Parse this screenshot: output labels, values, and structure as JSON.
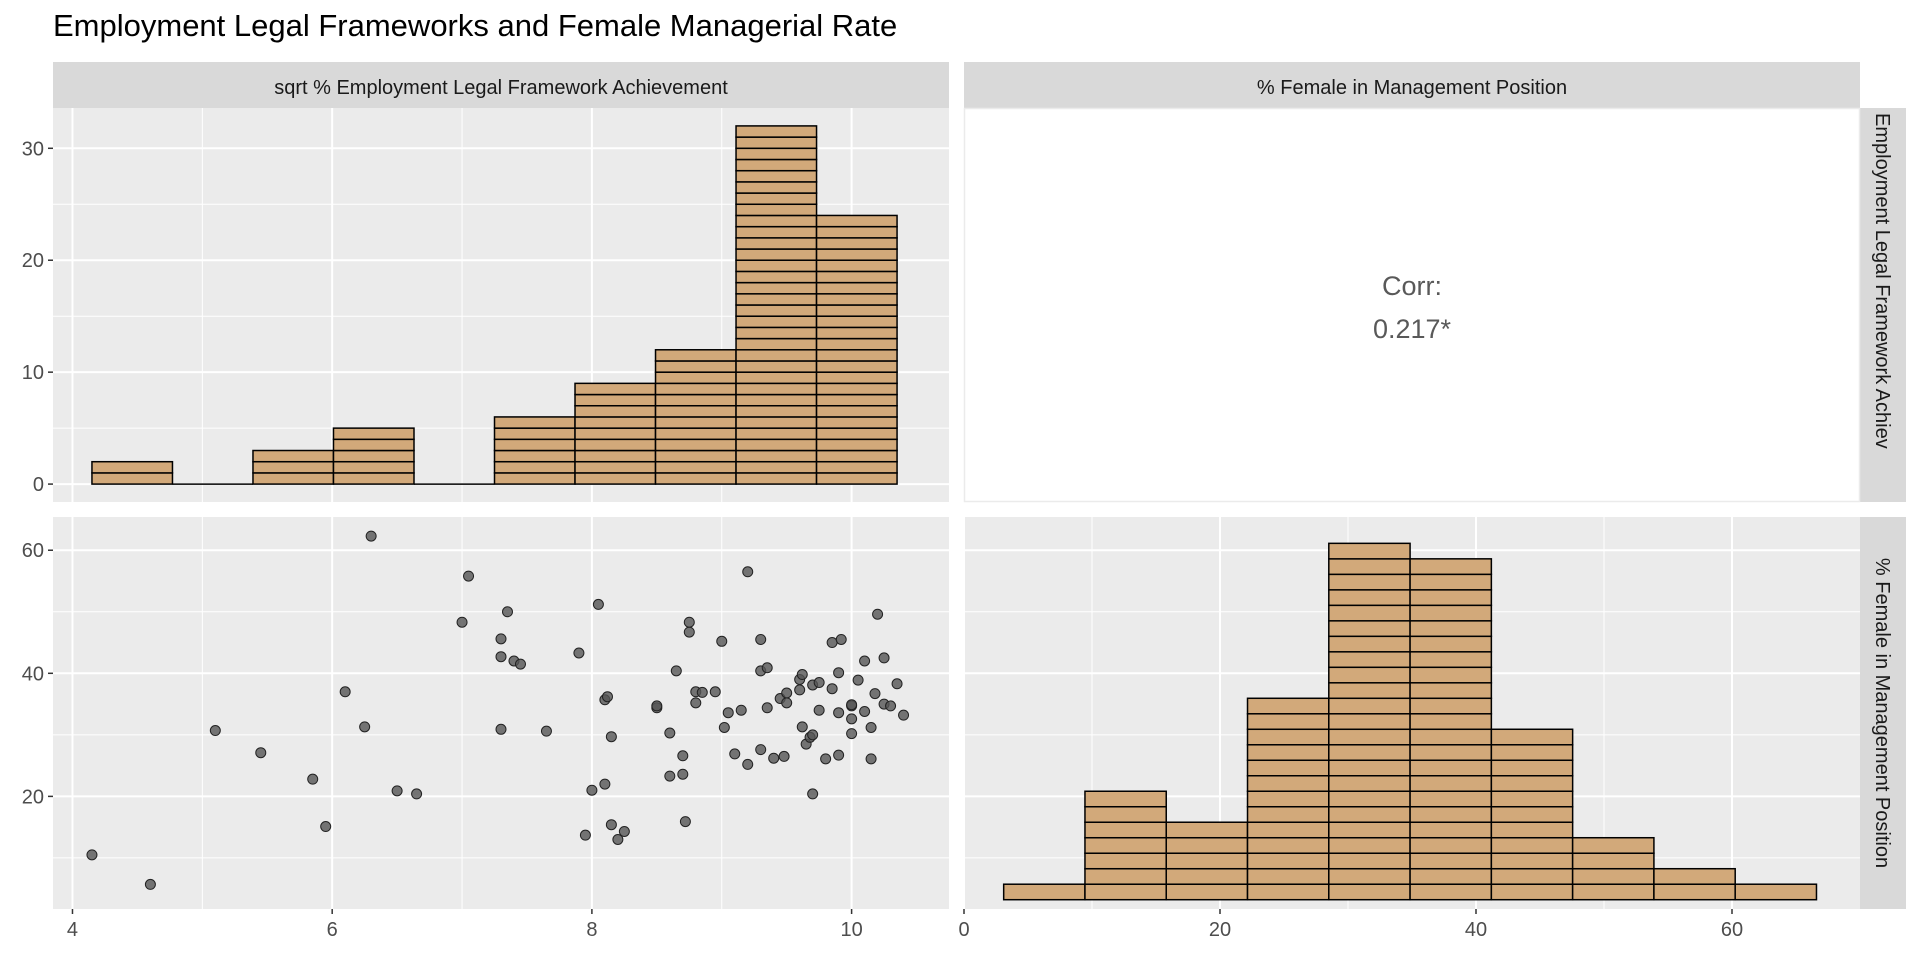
{
  "title": "Employment Legal Frameworks and Female Managerial Rate",
  "colors": {
    "panel_bg": "#EBEBEB",
    "strip_bg": "#D9D9D9",
    "grid": "#FFFFFF",
    "bar_fill": "#D2A97A",
    "bar_stroke": "#000000",
    "point": "#555555",
    "corr_text": "#595959",
    "axis_text": "#4D4D4D"
  },
  "strips": {
    "col1": "sqrt % Employment Legal Framework Achievement",
    "col2": "% Female in Management Position",
    "row1": "Employment Legal Framework Achiev",
    "row2": "% Female in Management Position"
  },
  "correlation": {
    "label": "Corr:",
    "value": "0.217*"
  },
  "chart_data": [
    {
      "type": "bar",
      "panel": "top-left",
      "variable": "sqrt % Employment Legal Framework Achievement",
      "bin_edges": [
        4.15,
        4.77,
        5.39,
        6.01,
        6.63,
        7.25,
        7.87,
        8.49,
        9.11,
        9.73,
        10.35
      ],
      "values": [
        2,
        0,
        3,
        5,
        0,
        6,
        9,
        12,
        32,
        24
      ],
      "xlim": [
        3.85,
        10.75
      ],
      "ylim": [
        -1.6,
        33.6
      ],
      "yticks": [
        0,
        10,
        20,
        30
      ],
      "grid": true
    },
    {
      "type": "text",
      "panel": "top-right",
      "label": "Corr:",
      "value": "0.217*"
    },
    {
      "type": "scatter",
      "panel": "bottom-left",
      "xlabel": "sqrt % Employment Legal Framework Achievement",
      "ylabel": "% Female in Management Position",
      "xlim": [
        3.85,
        10.75
      ],
      "ylim": [
        1.7,
        65.4
      ],
      "xticks": [
        4,
        6,
        8,
        10
      ],
      "yticks": [
        20,
        40,
        60
      ],
      "grid": true,
      "points": [
        [
          4.15,
          10.5
        ],
        [
          4.6,
          5.7
        ],
        [
          5.1,
          30.7
        ],
        [
          5.45,
          27.1
        ],
        [
          5.85,
          22.8
        ],
        [
          5.95,
          15.1
        ],
        [
          6.1,
          37.0
        ],
        [
          6.25,
          31.3
        ],
        [
          6.3,
          62.3
        ],
        [
          6.5,
          20.9
        ],
        [
          6.65,
          20.4
        ],
        [
          7.0,
          48.3
        ],
        [
          7.05,
          55.8
        ],
        [
          7.3,
          45.6
        ],
        [
          7.3,
          42.7
        ],
        [
          7.3,
          30.9
        ],
        [
          7.35,
          50.0
        ],
        [
          7.4,
          42.0
        ],
        [
          7.45,
          41.5
        ],
        [
          7.65,
          30.6
        ],
        [
          7.9,
          43.3
        ],
        [
          7.95,
          13.7
        ],
        [
          8.0,
          21.0
        ],
        [
          8.05,
          51.2
        ],
        [
          8.1,
          35.7
        ],
        [
          8.1,
          22.0
        ],
        [
          8.12,
          36.2
        ],
        [
          8.15,
          29.7
        ],
        [
          8.15,
          15.4
        ],
        [
          8.2,
          13.0
        ],
        [
          8.25,
          14.3
        ],
        [
          8.5,
          34.4
        ],
        [
          8.5,
          34.7
        ],
        [
          8.6,
          30.3
        ],
        [
          8.6,
          23.3
        ],
        [
          8.65,
          40.4
        ],
        [
          8.7,
          26.6
        ],
        [
          8.7,
          23.6
        ],
        [
          8.72,
          15.9
        ],
        [
          8.75,
          46.7
        ],
        [
          8.75,
          48.3
        ],
        [
          8.8,
          37.0
        ],
        [
          8.8,
          35.2
        ],
        [
          8.85,
          36.9
        ],
        [
          8.95,
          37.0
        ],
        [
          9.0,
          45.2
        ],
        [
          9.02,
          31.2
        ],
        [
          9.05,
          33.6
        ],
        [
          9.1,
          26.9
        ],
        [
          9.15,
          34.0
        ],
        [
          9.2,
          56.5
        ],
        [
          9.2,
          25.2
        ],
        [
          9.3,
          40.4
        ],
        [
          9.3,
          45.5
        ],
        [
          9.3,
          27.6
        ],
        [
          9.35,
          40.9
        ],
        [
          9.35,
          34.4
        ],
        [
          9.4,
          26.2
        ],
        [
          9.45,
          35.9
        ],
        [
          9.48,
          26.5
        ],
        [
          9.5,
          36.8
        ],
        [
          9.5,
          35.2
        ],
        [
          9.6,
          37.3
        ],
        [
          9.6,
          39.0
        ],
        [
          9.62,
          39.8
        ],
        [
          9.62,
          31.3
        ],
        [
          9.65,
          28.5
        ],
        [
          9.68,
          29.6
        ],
        [
          9.7,
          38.1
        ],
        [
          9.7,
          30.0
        ],
        [
          9.7,
          20.4
        ],
        [
          9.75,
          38.5
        ],
        [
          9.75,
          34.0
        ],
        [
          9.8,
          26.1
        ],
        [
          9.85,
          45.0
        ],
        [
          9.85,
          37.5
        ],
        [
          9.9,
          40.1
        ],
        [
          9.9,
          26.7
        ],
        [
          9.9,
          33.6
        ],
        [
          9.92,
          45.5
        ],
        [
          10.0,
          34.7
        ],
        [
          10.0,
          32.6
        ],
        [
          10.0,
          30.2
        ],
        [
          10.0,
          34.9
        ],
        [
          10.05,
          38.9
        ],
        [
          10.1,
          42.0
        ],
        [
          10.1,
          33.8
        ],
        [
          10.15,
          26.1
        ],
        [
          10.15,
          31.2
        ],
        [
          10.18,
          36.7
        ],
        [
          10.2,
          49.6
        ],
        [
          10.25,
          42.5
        ],
        [
          10.25,
          35.0
        ],
        [
          10.3,
          34.7
        ],
        [
          10.35,
          38.3
        ],
        [
          10.4,
          33.2
        ]
      ]
    },
    {
      "type": "bar",
      "panel": "bottom-right",
      "variable": "% Female in Management Position",
      "bin_edges": [
        3.1,
        9.45,
        15.8,
        22.15,
        28.5,
        34.85,
        41.2,
        47.55,
        53.9,
        60.25,
        66.6
      ],
      "values": [
        1,
        7,
        5,
        13,
        23,
        22,
        11,
        4,
        2,
        1
      ],
      "xlim": [
        0,
        70
      ],
      "ylim": [
        -0.6,
        24.7
      ],
      "xticks": [
        0,
        20,
        40,
        60
      ],
      "grid": true
    }
  ]
}
